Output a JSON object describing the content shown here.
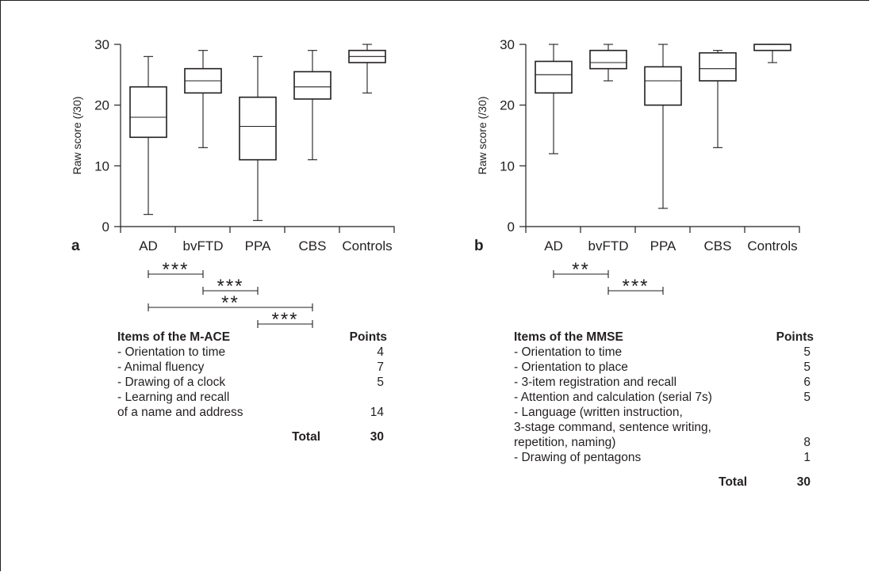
{
  "panels": [
    {
      "letter": "a",
      "ylabel": "Raw score (/30)",
      "table": {
        "header_items": "Items of the M-ACE",
        "header_points": "Points",
        "rows": [
          {
            "item": "- Orientation to time",
            "points": "4"
          },
          {
            "item": "- Animal fluency",
            "points": "7"
          },
          {
            "item": "- Drawing of a clock",
            "points": "5"
          },
          {
            "item": "- Learning and recall",
            "points": ""
          },
          {
            "item": "of a name and address",
            "points": "14"
          }
        ],
        "total_label": "Total",
        "total_value": "30"
      }
    },
    {
      "letter": "b",
      "ylabel": "Raw score (/30)",
      "table": {
        "header_items": "Items of the MMSE",
        "header_points": "Points",
        "rows": [
          {
            "item": "- Orientation to time",
            "points": "5"
          },
          {
            "item": "- Orientation to place",
            "points": "5"
          },
          {
            "item": "- 3-item registration and recall",
            "points": "6"
          },
          {
            "item": "- Attention and calculation (serial 7s)",
            "points": "5"
          },
          {
            "item": "- Language (written instruction,",
            "points": ""
          },
          {
            "item": "3-stage command, sentence writing,",
            "points": ""
          },
          {
            "item": "repetition, naming)",
            "points": "8"
          },
          {
            "item": "- Drawing of pentagons",
            "points": "1"
          }
        ],
        "total_label": "Total",
        "total_value": "30"
      }
    }
  ],
  "chart_data": [
    {
      "type": "box",
      "panel": "a",
      "ylabel": "Raw score (/30)",
      "ylim": [
        0,
        30
      ],
      "yticks": [
        0,
        10,
        20,
        30
      ],
      "categories": [
        "AD",
        "bvFTD",
        "PPA",
        "CBS",
        "Controls"
      ],
      "boxes": [
        {
          "min": 2,
          "q1": 14.7,
          "median": 18,
          "q3": 23,
          "max": 28
        },
        {
          "min": 13,
          "q1": 22,
          "median": 24,
          "q3": 26,
          "max": 29
        },
        {
          "min": 1,
          "q1": 11,
          "median": 16.5,
          "q3": 21.3,
          "max": 28
        },
        {
          "min": 11,
          "q1": 21,
          "median": 23,
          "q3": 25.5,
          "max": 29
        },
        {
          "min": 22,
          "q1": 27,
          "median": 28,
          "q3": 29,
          "max": 30
        }
      ],
      "significance": [
        {
          "from": "AD",
          "to": "bvFTD",
          "label": "***"
        },
        {
          "from": "bvFTD",
          "to": "PPA",
          "label": "***"
        },
        {
          "from": "AD",
          "to": "CBS",
          "label": "**"
        },
        {
          "from": "PPA",
          "to": "CBS",
          "label": "***"
        }
      ]
    },
    {
      "type": "box",
      "panel": "b",
      "ylabel": "Raw score (/30)",
      "ylim": [
        0,
        30
      ],
      "yticks": [
        0,
        10,
        20,
        30
      ],
      "categories": [
        "AD",
        "bvFTD",
        "PPA",
        "CBS",
        "Controls"
      ],
      "boxes": [
        {
          "min": 12,
          "q1": 22,
          "median": 25,
          "q3": 27.2,
          "max": 30
        },
        {
          "min": 24,
          "q1": 26,
          "median": 27,
          "q3": 29,
          "max": 30
        },
        {
          "min": 3,
          "q1": 20,
          "median": 24,
          "q3": 26.3,
          "max": 30
        },
        {
          "min": 13,
          "q1": 24,
          "median": 26,
          "q3": 28.6,
          "max": 29
        },
        {
          "min": 27,
          "q1": 29,
          "median": 30,
          "q3": 30,
          "max": 30
        }
      ],
      "significance": [
        {
          "from": "AD",
          "to": "bvFTD",
          "label": "**"
        },
        {
          "from": "bvFTD",
          "to": "PPA",
          "label": "***"
        }
      ]
    }
  ]
}
